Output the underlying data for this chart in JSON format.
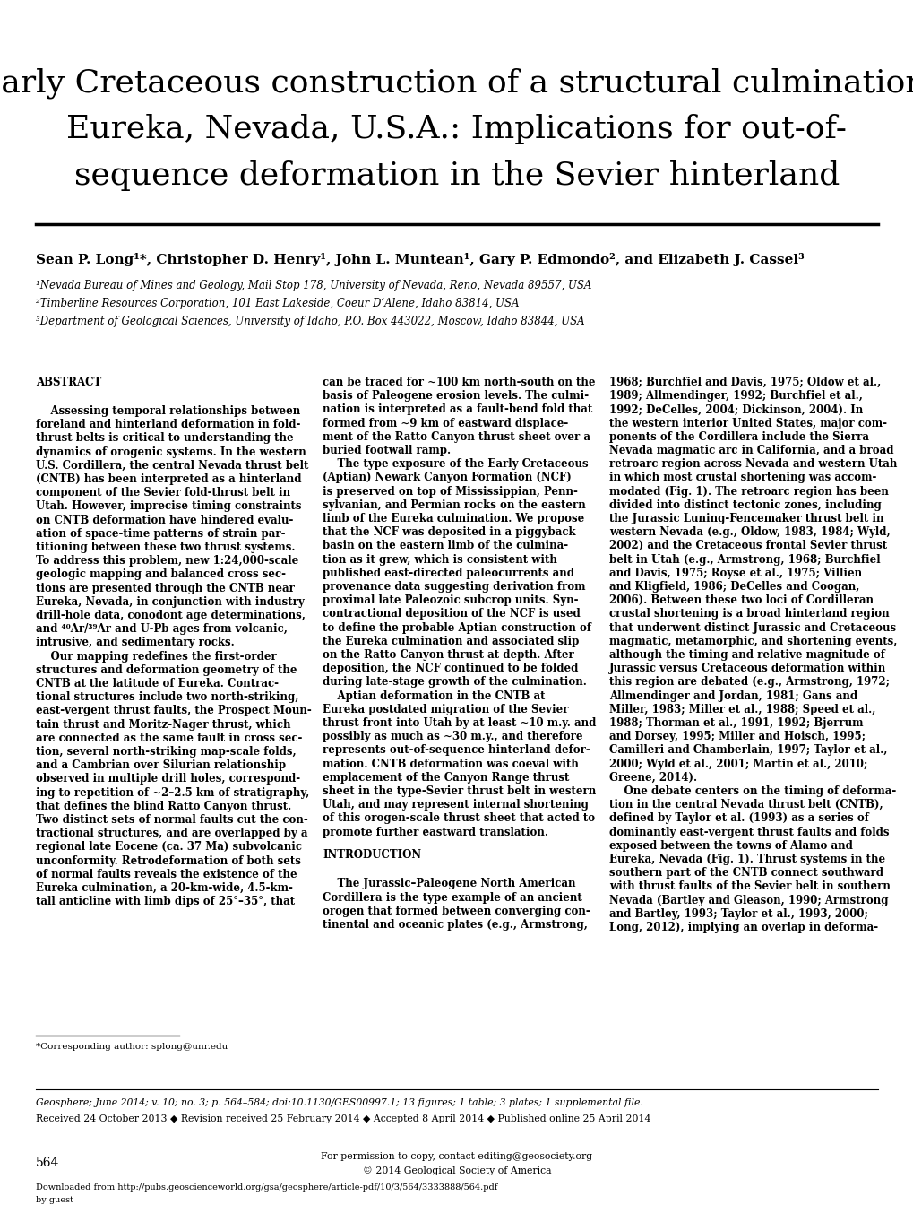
{
  "bg_color": "#ffffff",
  "title_line1": "Early Cretaceous construction of a structural culmination,",
  "title_line2": "Eureka, Nevada, U.S.A.: Implications for out-of-",
  "title_line3": "sequence deformation in the Sevier hinterland",
  "authors_bold": "Sean P. Long¹*, Christopher D. Henry¹, John L. Muntean¹, Gary P. Edmondo², and Elizabeth J. Cassel³",
  "affil1": "¹Nevada Bureau of Mines and Geology, Mail Stop 178, University of Nevada, Reno, Nevada 89557, USA",
  "affil2": "²Timberline Resources Corporation, 101 East Lakeside, Coeur D’Alene, Idaho 83814, USA",
  "affil3": "³Department of Geological Sciences, University of Idaho, P.O. Box 443022, Moscow, Idaho 83844, USA",
  "footnote_corresponding": "*Corresponding author: splong@unr.edu",
  "abstract_header": "ABSTRACT",
  "intro_header": "INTRODUCTION",
  "col1_lines": [
    "ABSTRACT",
    "",
    "    Assessing temporal relationships between",
    "foreland and hinterland deformation in fold-",
    "thrust belts is critical to understanding the",
    "dynamics of orogenic systems. In the western",
    "U.S. Cordillera, the central Nevada thrust belt",
    "(CNTB) has been interpreted as a hinterland",
    "component of the Sevier fold-thrust belt in",
    "Utah. However, imprecise timing constraints",
    "on CNTB deformation have hindered evalu-",
    "ation of space-time patterns of strain par-",
    "titioning between these two thrust systems.",
    "To address this problem, new 1:24,000-scale",
    "geologic mapping and balanced cross sec-",
    "tions are presented through the CNTB near",
    "Eureka, Nevada, in conjunction with industry",
    "drill-hole data, conodont age determinations,",
    "and ⁴⁰Ar/³⁹Ar and U-Pb ages from volcanic,",
    "intrusive, and sedimentary rocks.",
    "    Our mapping redefines the first-order",
    "structures and deformation geometry of the",
    "CNTB at the latitude of Eureka. Contrac-",
    "tional structures include two north-striking,",
    "east-vergent thrust faults, the Prospect Moun-",
    "tain thrust and Moritz-Nager thrust, which",
    "are connected as the same fault in cross sec-",
    "tion, several north-striking map-scale folds,",
    "and a Cambrian over Silurian relationship",
    "observed in multiple drill holes, correspond-",
    "ing to repetition of ~2–2.5 km of stratigraphy,",
    "that defines the blind Ratto Canyon thrust.",
    "Two distinct sets of normal faults cut the con-",
    "tractional structures, and are overlapped by a",
    "regional late Eocene (ca. 37 Ma) subvolcanic",
    "unconformity. Retrodeformation of both sets",
    "of normal faults reveals the existence of the",
    "Eureka culmination, a 20-km-wide, 4.5-km-",
    "tall anticline with limb dips of 25°–35°, that"
  ],
  "col2_lines": [
    "can be traced for ~100 km north-south on the",
    "basis of Paleogene erosion levels. The culmi-",
    "nation is interpreted as a fault-bend fold that",
    "formed from ~9 km of eastward displace-",
    "ment of the Ratto Canyon thrust sheet over a",
    "buried footwall ramp.",
    "    The type exposure of the Early Cretaceous",
    "(Aptian) Newark Canyon Formation (NCF)",
    "is preserved on top of Mississippian, Penn-",
    "sylvanian, and Permian rocks on the eastern",
    "limb of the Eureka culmination. We propose",
    "that the NCF was deposited in a piggyback",
    "basin on the eastern limb of the culmina-",
    "tion as it grew, which is consistent with",
    "published east-directed paleocurrents and",
    "provenance data suggesting derivation from",
    "proximal late Paleozoic subcrop units. Syn-",
    "contractional deposition of the NCF is used",
    "to define the probable Aptian construction of",
    "the Eureka culmination and associated slip",
    "on the Ratto Canyon thrust at depth. After",
    "deposition, the NCF continued to be folded",
    "during late-stage growth of the culmination.",
    "    Aptian deformation in the CNTB at",
    "Eureka postdated migration of the Sevier",
    "thrust front into Utah by at least ~10 m.y. and",
    "possibly as much as ~30 m.y., and therefore",
    "represents out-of-sequence hinterland defor-",
    "mation. CNTB deformation was coeval with",
    "emplacement of the Canyon Range thrust",
    "sheet in the type-Sevier thrust belt in western",
    "Utah, and may represent internal shortening",
    "of this orogen-scale thrust sheet that acted to",
    "promote further eastward translation.",
    "",
    "INTRODUCTION",
    "",
    "    The Jurassic–Paleogene North American",
    "Cordillera is the type example of an ancient",
    "orogen that formed between converging con-",
    "tinental and oceanic plates (e.g., Armstrong,"
  ],
  "col3_lines": [
    "1968; Burchfiel and Davis, 1975; Oldow et al.,",
    "1989; Allmendinger, 1992; Burchfiel et al.,",
    "1992; DeCelles, 2004; Dickinson, 2004). In",
    "the western interior United States, major com-",
    "ponents of the Cordillera include the Sierra",
    "Nevada magmatic arc in California, and a broad",
    "retroarc region across Nevada and western Utah",
    "in which most crustal shortening was accom-",
    "modated (Fig. 1). The retroarc region has been",
    "divided into distinct tectonic zones, including",
    "the Jurassic Luning-Fencemaker thrust belt in",
    "western Nevada (e.g., Oldow, 1983, 1984; Wyld,",
    "2002) and the Cretaceous frontal Sevier thrust",
    "belt in Utah (e.g., Armstrong, 1968; Burchfiel",
    "and Davis, 1975; Royse et al., 1975; Villien",
    "and Kligfield, 1986; DeCelles and Coogan,",
    "2006). Between these two loci of Cordilleran",
    "crustal shortening is a broad hinterland region",
    "that underwent distinct Jurassic and Cretaceous",
    "magmatic, metamorphic, and shortening events,",
    "although the timing and relative magnitude of",
    "Jurassic versus Cretaceous deformation within",
    "this region are debated (e.g., Armstrong, 1972;",
    "Allmendinger and Jordan, 1981; Gans and",
    "Miller, 1983; Miller et al., 1988; Speed et al.,",
    "1988; Thorman et al., 1991, 1992; Bjerrum",
    "and Dorsey, 1995; Miller and Hoisch, 1995;",
    "Camilleri and Chamberlain, 1997; Taylor et al.,",
    "2000; Wyld et al., 2001; Martin et al., 2010;",
    "Greene, 2014).",
    "    One debate centers on the timing of deforma-",
    "tion in the central Nevada thrust belt (CNTB),",
    "defined by Taylor et al. (1993) as a series of",
    "dominantly east-vergent thrust faults and folds",
    "exposed between the towns of Alamo and",
    "Eureka, Nevada (Fig. 1). Thrust systems in the",
    "southern part of the CNTB connect southward",
    "with thrust faults of the Sevier belt in southern",
    "Nevada (Bartley and Gleason, 1990; Armstrong",
    "and Bartley, 1993; Taylor et al., 1993, 2000;",
    "Long, 2012), implying an overlap in deforma-"
  ],
  "footer_journal": "Geosphere; June 2014; v. 10; no. 3; p. 564–584; doi:10.1130/GES00997.1; 13 figures; 1 table; 3 plates; 1 supplemental file.",
  "footer_received": "Received 24 October 2013 ◆ Revision received 25 February 2014 ◆ Accepted 8 April 2014 ◆ Published online 25 April 2014",
  "page_number": "564",
  "permission": "For permission to copy, contact editing@geosociety.org",
  "copyright": "© 2014 Geological Society of America",
  "downloaded": "Downloaded from http://pubs.geoscienceworld.org/gsa/geosphere/article-pdf/10/3/564/3333888/564.pdf",
  "by_guest": "by guest"
}
